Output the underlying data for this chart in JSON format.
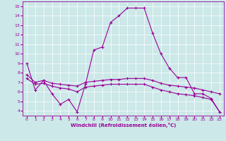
{
  "xlabel": "Windchill (Refroidissement éolien,°C)",
  "bg_color": "#cce8e8",
  "line_color": "#990099",
  "xlim": [
    -0.5,
    23.5
  ],
  "ylim": [
    3.5,
    15.5
  ],
  "xticks": [
    0,
    1,
    2,
    3,
    4,
    5,
    6,
    7,
    8,
    9,
    10,
    11,
    12,
    13,
    14,
    15,
    16,
    17,
    18,
    19,
    20,
    21,
    22,
    23
  ],
  "yticks": [
    4,
    5,
    6,
    7,
    8,
    9,
    10,
    11,
    12,
    13,
    14,
    15
  ],
  "series1_x": [
    0,
    1,
    2,
    3,
    4,
    5,
    6,
    7,
    8,
    9,
    10,
    11,
    12,
    13,
    14,
    15,
    16,
    17,
    18,
    19,
    20,
    21,
    22,
    23
  ],
  "series1_y": [
    9.0,
    6.2,
    7.2,
    5.8,
    4.7,
    5.2,
    3.9,
    6.8,
    10.4,
    10.7,
    13.3,
    14.0,
    14.8,
    14.8,
    14.8,
    12.2,
    10.0,
    8.5,
    7.5,
    7.5,
    5.8,
    5.8,
    5.3,
    3.9
  ],
  "series2_x": [
    0,
    1,
    2,
    3,
    4,
    5,
    6,
    7,
    8,
    9,
    10,
    11,
    12,
    13,
    14,
    15,
    16,
    17,
    18,
    19,
    20,
    21,
    22,
    23
  ],
  "series2_y": [
    7.8,
    7.0,
    7.2,
    6.9,
    6.8,
    6.7,
    6.6,
    7.0,
    7.1,
    7.2,
    7.3,
    7.3,
    7.4,
    7.4,
    7.4,
    7.2,
    6.9,
    6.7,
    6.6,
    6.5,
    6.4,
    6.2,
    6.0,
    5.8
  ],
  "series3_x": [
    0,
    1,
    2,
    3,
    4,
    5,
    6,
    7,
    8,
    9,
    10,
    11,
    12,
    13,
    14,
    15,
    16,
    17,
    18,
    19,
    20,
    21,
    22,
    23
  ],
  "series3_y": [
    7.4,
    6.8,
    6.9,
    6.6,
    6.4,
    6.3,
    6.0,
    6.5,
    6.6,
    6.7,
    6.8,
    6.8,
    6.8,
    6.8,
    6.8,
    6.5,
    6.2,
    6.0,
    5.8,
    5.7,
    5.6,
    5.4,
    5.2,
    3.9
  ]
}
